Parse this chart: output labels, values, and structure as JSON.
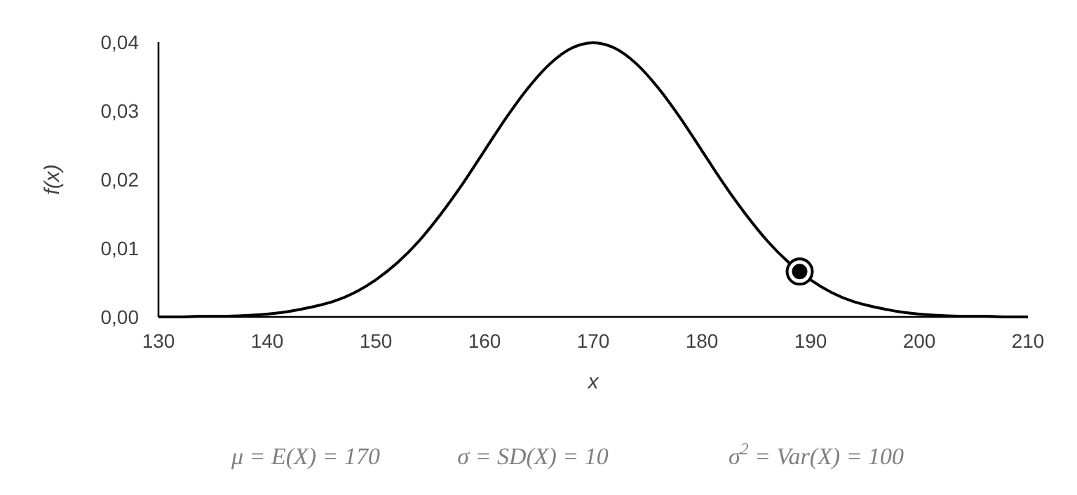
{
  "chart_data": {
    "type": "line",
    "xlabel": "x",
    "ylabel": "f(x)",
    "xlim": [
      130,
      210
    ],
    "xticks": [
      130,
      140,
      150,
      160,
      170,
      180,
      190,
      200,
      210
    ],
    "ylim": [
      0,
      0.04
    ],
    "yticks": [
      {
        "value": 0,
        "label": "0,00"
      },
      {
        "value": 0.01,
        "label": "0,01"
      },
      {
        "value": 0.02,
        "label": "0,02"
      },
      {
        "value": 0.03,
        "label": "0,03"
      },
      {
        "value": 0.04,
        "label": "0,04"
      }
    ],
    "grid": false,
    "series": [
      {
        "color": "#000000",
        "marker": "none",
        "x": [
          130,
          132,
          134,
          136,
          138,
          140,
          142,
          144,
          146,
          148,
          150,
          152,
          154,
          156,
          158,
          160,
          162,
          164,
          166,
          168,
          170,
          172,
          174,
          176,
          178,
          180,
          182,
          184,
          186,
          188,
          190,
          192,
          194,
          196,
          198,
          200,
          202,
          204,
          206,
          208,
          210
        ],
        "values": [
          0,
          0,
          0.0001,
          0.0001,
          0.0002,
          0.0004,
          0.0008,
          0.0014,
          0.0022,
          0.0035,
          0.0054,
          0.0079,
          0.0111,
          0.015,
          0.0194,
          0.0242,
          0.029,
          0.0333,
          0.0368,
          0.0391,
          0.0399,
          0.0391,
          0.0368,
          0.0333,
          0.029,
          0.0242,
          0.0194,
          0.015,
          0.0111,
          0.0079,
          0.0054,
          0.0035,
          0.0022,
          0.0014,
          0.0008,
          0.0004,
          0.0002,
          0.0001,
          0.0001,
          0,
          0
        ]
      },
      {
        "type": "scatter",
        "color": "#000000",
        "marker": "circle",
        "x": [
          189
        ],
        "values": [
          0.0066
        ]
      }
    ],
    "annotations": [
      "μ = E(X) = 170",
      "σ = SD(X) = 10",
      "σ$^{2}$ = Var(X) = 100"
    ]
  }
}
